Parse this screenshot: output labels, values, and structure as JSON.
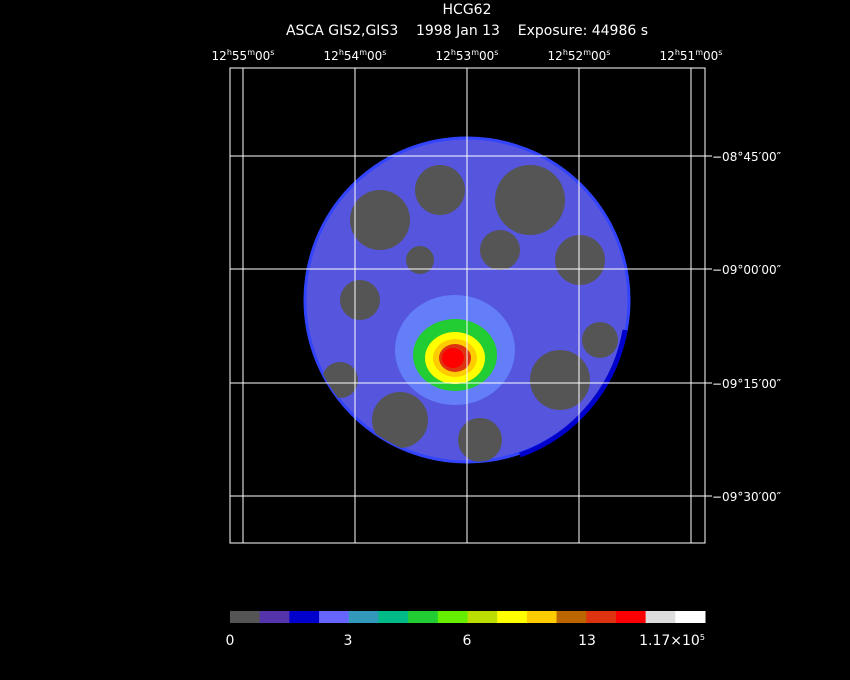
{
  "header": {
    "title": "HCG62",
    "subtitle": "ASCA GIS2,GIS3    1998 Jan 13    Exposure: 44986 s"
  },
  "ra_labels": [
    [
      "12",
      "h",
      "55",
      "m",
      "00",
      "s"
    ],
    [
      "12",
      "h",
      "54",
      "m",
      "00",
      "s"
    ],
    [
      "12",
      "h",
      "53",
      "m",
      "00",
      "s"
    ],
    [
      "12",
      "h",
      "52",
      "m",
      "00",
      "s"
    ],
    [
      "12",
      "h",
      "51",
      "m",
      "00",
      "s"
    ]
  ],
  "dec_labels": [
    "−08°45′00″",
    "−09°00′00″",
    "−09°15′00″",
    "−09°30′00″"
  ],
  "colorbar": {
    "colors": [
      "#555555",
      "#5533aa",
      "#0000cc",
      "#6666ff",
      "#3399bb",
      "#00bb88",
      "#22cc33",
      "#66ee00",
      "#bbdd00",
      "#ffff00",
      "#ffcc00",
      "#bb6600",
      "#dd3311",
      "#ff0000",
      "#dddddd",
      "#ffffff"
    ],
    "labels": [
      [
        "0"
      ],
      [
        "3"
      ],
      [
        "6"
      ],
      [
        "13"
      ],
      [
        "1.17×10",
        "5"
      ]
    ]
  }
}
